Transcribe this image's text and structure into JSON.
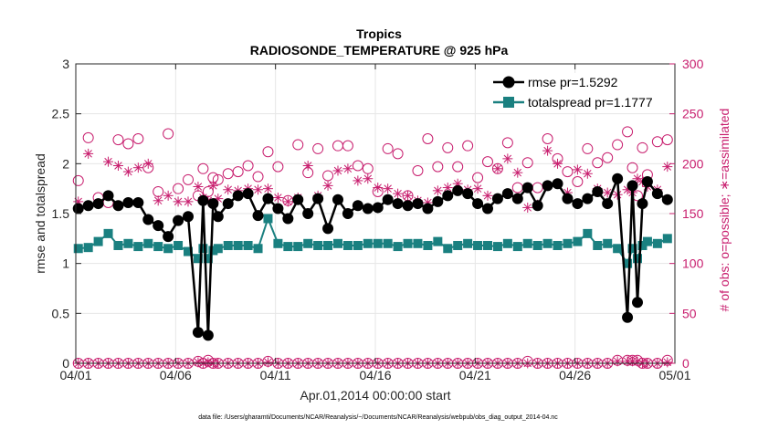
{
  "chart_data": {
    "type": "line",
    "title": "Tropics",
    "subtitle": "RADIOSONDE_TEMPERATURE @ 925 hPa",
    "xlabel": "Apr.01,2014 00:00:00 start",
    "ylabel": "rmse and totalspread",
    "y2label": "# of obs: o=possible; ∗=assimilated",
    "footnote": "data file: /Users/gharamti/Documents/NCAR/Reanalysis/~/Documents/NCAR/Reanalysis/webpub/obs_diag_output_2014-04.nc",
    "xlim": [
      0,
      30
    ],
    "ylim": [
      0,
      3
    ],
    "y2lim": [
      0,
      300
    ],
    "x_ticks": [
      0,
      5,
      10,
      15,
      20,
      25,
      30
    ],
    "x_tick_labels": [
      "04/01",
      "04/06",
      "04/11",
      "04/16",
      "04/21",
      "04/26",
      "05/01"
    ],
    "y_ticks": [
      0,
      0.5,
      1,
      1.5,
      2,
      2.5,
      3
    ],
    "y_tick_labels": [
      "0",
      "0.5",
      "1",
      "1.5",
      "2",
      "2.5",
      "3"
    ],
    "y2_ticks": [
      0,
      50,
      100,
      150,
      200,
      250,
      300
    ],
    "y2_tick_labels": [
      "0",
      "50",
      "100",
      "150",
      "200",
      "250",
      "300"
    ],
    "legend_position": "top-right",
    "colors": {
      "rmse": "#000000",
      "totalspread": "#1a8080",
      "obs": "#c81e6e"
    },
    "x": [
      0.125,
      0.625,
      1.125,
      1.625,
      2.125,
      2.625,
      3.125,
      3.625,
      4.125,
      4.625,
      5.125,
      5.625,
      6.125,
      6.375,
      6.625,
      6.875,
      7.125,
      7.625,
      8.125,
      8.625,
      9.125,
      9.625,
      10.125,
      10.625,
      11.125,
      11.625,
      12.125,
      12.625,
      13.125,
      13.625,
      14.125,
      14.625,
      15.125,
      15.625,
      16.125,
      16.625,
      17.125,
      17.625,
      18.125,
      18.625,
      19.125,
      19.625,
      20.125,
      20.625,
      21.125,
      21.625,
      22.125,
      22.625,
      23.125,
      23.625,
      24.125,
      24.625,
      25.125,
      25.625,
      26.125,
      26.625,
      27.125,
      27.625,
      27.875,
      28.125,
      28.375,
      28.625,
      29.125,
      29.625
    ],
    "series": [
      {
        "name": "rmse",
        "legend_label": "rmse pr=1.5292",
        "marker": "circle",
        "values": [
          1.55,
          1.58,
          1.6,
          1.68,
          1.58,
          1.61,
          1.61,
          1.44,
          1.38,
          1.27,
          1.43,
          1.47,
          0.31,
          1.63,
          0.28,
          1.6,
          1.47,
          1.6,
          1.68,
          1.7,
          1.48,
          1.65,
          1.55,
          1.45,
          1.64,
          1.5,
          1.65,
          1.35,
          1.64,
          1.5,
          1.58,
          1.55,
          1.56,
          1.64,
          1.6,
          1.58,
          1.6,
          1.55,
          1.62,
          1.68,
          1.73,
          1.7,
          1.6,
          1.55,
          1.65,
          1.7,
          1.65,
          1.76,
          1.58,
          1.78,
          1.8,
          1.65,
          1.6,
          1.65,
          1.72,
          1.6,
          1.85,
          0.46,
          1.78,
          0.61,
          1.6,
          1.82,
          1.7,
          1.64
        ]
      },
      {
        "name": "totalspread",
        "legend_label": "totalspread pr=1.1777",
        "marker": "square",
        "values": [
          1.15,
          1.16,
          1.22,
          1.3,
          1.18,
          1.2,
          1.17,
          1.2,
          1.17,
          1.15,
          1.18,
          1.12,
          1.05,
          1.15,
          1.05,
          1.13,
          1.15,
          1.18,
          1.18,
          1.18,
          1.15,
          1.45,
          1.2,
          1.17,
          1.17,
          1.2,
          1.18,
          1.18,
          1.2,
          1.18,
          1.18,
          1.2,
          1.2,
          1.2,
          1.17,
          1.2,
          1.2,
          1.18,
          1.22,
          1.15,
          1.18,
          1.2,
          1.18,
          1.18,
          1.17,
          1.2,
          1.17,
          1.2,
          1.18,
          1.2,
          1.18,
          1.2,
          1.22,
          1.3,
          1.18,
          1.2,
          1.15,
          1.0,
          1.15,
          1.05,
          1.18,
          1.22,
          1.2,
          1.25
        ]
      },
      {
        "name": "obs_possible",
        "marker": "open-circle",
        "axis": "right",
        "values": [
          183,
          226,
          166,
          161,
          224,
          220,
          225,
          196,
          172,
          230,
          175,
          184,
          168,
          195,
          172,
          186,
          184,
          190,
          192,
          198,
          187,
          212,
          197,
          163,
          219,
          191,
          215,
          188,
          218,
          218,
          198,
          195,
          172,
          215,
          210,
          168,
          193,
          225,
          197,
          216,
          197,
          218,
          186,
          202,
          195,
          221,
          176,
          201,
          176,
          225,
          205,
          192,
          182,
          215,
          201,
          206,
          219,
          232,
          196,
          168,
          216,
          189,
          222,
          224
        ]
      },
      {
        "name": "obs_assimilated",
        "marker": "asterisk",
        "axis": "right",
        "values": [
          162,
          210,
          160,
          202,
          198,
          192,
          196,
          200,
          163,
          168,
          162,
          162,
          177,
          166,
          163,
          178,
          165,
          174,
          173,
          175,
          174,
          175,
          166,
          162,
          166,
          198,
          168,
          178,
          193,
          195,
          183,
          185,
          176,
          175,
          170,
          168,
          163,
          161,
          173,
          176,
          180,
          174,
          175,
          168,
          195,
          205,
          191,
          156,
          159,
          213,
          200,
          171,
          194,
          190,
          175,
          171,
          169,
          174,
          171,
          185,
          182,
          177,
          174,
          197
        ]
      },
      {
        "name": "obs_possible_low",
        "marker": "open-circle",
        "axis": "right",
        "values": [
          0,
          0,
          0,
          0,
          0,
          0,
          0,
          0,
          0,
          0,
          0,
          0,
          2,
          0,
          3,
          0,
          0,
          0,
          0,
          0,
          0,
          2,
          0,
          0,
          0,
          0,
          0,
          0,
          0,
          0,
          0,
          0,
          0,
          0,
          0,
          0,
          0,
          0,
          0,
          0,
          0,
          0,
          0,
          0,
          0,
          0,
          0,
          2,
          0,
          0,
          0,
          0,
          0,
          0,
          0,
          0,
          3,
          3,
          3,
          3,
          0,
          0,
          0,
          3
        ]
      },
      {
        "name": "obs_assimilated_low",
        "marker": "asterisk",
        "axis": "right",
        "values": [
          0,
          0,
          0,
          0,
          0,
          0,
          0,
          0,
          0,
          0,
          0,
          0,
          1,
          0,
          1,
          0,
          0,
          0,
          0,
          0,
          0,
          1,
          0,
          0,
          0,
          0,
          0,
          0,
          0,
          0,
          0,
          0,
          0,
          0,
          0,
          0,
          0,
          0,
          0,
          0,
          0,
          0,
          0,
          0,
          0,
          0,
          0,
          0,
          0,
          0,
          0,
          0,
          0,
          0,
          0,
          0,
          2,
          2,
          2,
          2,
          0,
          0,
          0,
          1
        ]
      }
    ]
  }
}
